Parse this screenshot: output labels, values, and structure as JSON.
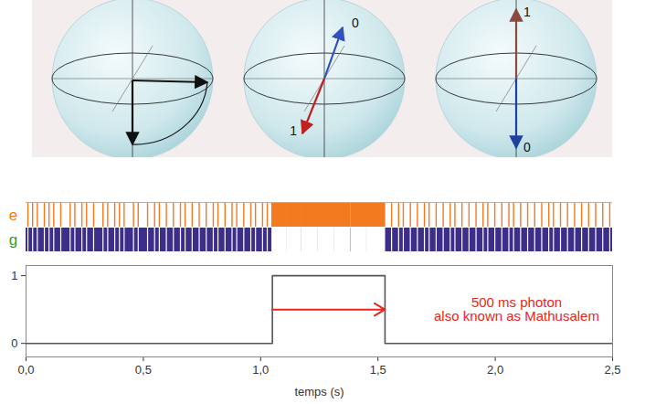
{
  "diagram": {
    "spheres": [
      {
        "labels": []
      },
      {
        "labels": [
          "0",
          "1"
        ]
      },
      {
        "labels": [
          "1",
          "0"
        ]
      }
    ]
  },
  "chart_data": [
    {
      "type": "raster",
      "xlim": [
        0,
        2.5
      ],
      "series": [
        {
          "name": "e",
          "color": "#f47a20",
          "intervals": [
            [
              0.01,
              0.01
            ],
            [
              0.03,
              0.03
            ],
            [
              0.05,
              0.05
            ],
            [
              0.08,
              0.08
            ],
            [
              0.1,
              0.1
            ],
            [
              0.12,
              0.12
            ],
            [
              0.15,
              0.15
            ],
            [
              0.19,
              0.19
            ],
            [
              0.21,
              0.21
            ],
            [
              0.24,
              0.24
            ],
            [
              0.26,
              0.26
            ],
            [
              0.29,
              0.29
            ],
            [
              0.33,
              0.33
            ],
            [
              0.35,
              0.35
            ],
            [
              0.38,
              0.38
            ],
            [
              0.4,
              0.4
            ],
            [
              0.42,
              0.42
            ],
            [
              0.46,
              0.46
            ],
            [
              0.48,
              0.48
            ],
            [
              0.52,
              0.52
            ],
            [
              0.55,
              0.55
            ],
            [
              0.57,
              0.57
            ],
            [
              0.6,
              0.6
            ],
            [
              0.63,
              0.63
            ],
            [
              0.66,
              0.66
            ],
            [
              0.68,
              0.68
            ],
            [
              0.71,
              0.71
            ],
            [
              0.74,
              0.74
            ],
            [
              0.77,
              0.77
            ],
            [
              0.8,
              0.8
            ],
            [
              0.82,
              0.82
            ],
            [
              0.85,
              0.85
            ],
            [
              0.88,
              0.88
            ],
            [
              0.9,
              0.9
            ],
            [
              0.93,
              0.93
            ],
            [
              0.96,
              0.96
            ],
            [
              0.98,
              0.98
            ],
            [
              1.01,
              1.01
            ],
            [
              1.03,
              1.03
            ],
            [
              1.05,
              1.11
            ],
            [
              1.113,
              1.17
            ],
            [
              1.175,
              1.24
            ],
            [
              1.245,
              1.31
            ],
            [
              1.315,
              1.38
            ],
            [
              1.386,
              1.45
            ],
            [
              1.455,
              1.53
            ],
            [
              1.56,
              1.56
            ],
            [
              1.59,
              1.59
            ],
            [
              1.61,
              1.61
            ],
            [
              1.64,
              1.64
            ],
            [
              1.67,
              1.67
            ],
            [
              1.7,
              1.7
            ],
            [
              1.72,
              1.72
            ],
            [
              1.75,
              1.75
            ],
            [
              1.78,
              1.78
            ],
            [
              1.81,
              1.81
            ],
            [
              1.83,
              1.83
            ],
            [
              1.86,
              1.86
            ],
            [
              1.89,
              1.89
            ],
            [
              1.92,
              1.92
            ],
            [
              1.95,
              1.95
            ],
            [
              1.97,
              1.97
            ],
            [
              2.0,
              2.0
            ],
            [
              2.03,
              2.03
            ],
            [
              2.06,
              2.06
            ],
            [
              2.08,
              2.08
            ],
            [
              2.11,
              2.11
            ],
            [
              2.14,
              2.14
            ],
            [
              2.17,
              2.17
            ],
            [
              2.2,
              2.2
            ],
            [
              2.23,
              2.23
            ],
            [
              2.25,
              2.25
            ],
            [
              2.28,
              2.28
            ],
            [
              2.31,
              2.31
            ],
            [
              2.34,
              2.34
            ],
            [
              2.37,
              2.37
            ],
            [
              2.4,
              2.4
            ],
            [
              2.43,
              2.43
            ],
            [
              2.46,
              2.46
            ],
            [
              2.49,
              2.49
            ]
          ]
        },
        {
          "name": "g",
          "color": "#3d2e8a"
        }
      ]
    },
    {
      "type": "line",
      "line_style": "step",
      "color": "#555555",
      "x": [
        0,
        1.05,
        1.53,
        2.5
      ],
      "values": [
        0,
        1,
        0,
        0
      ],
      "x_label": "temps (s)",
      "xlim": [
        0,
        2.5
      ],
      "xticks": [
        {
          "value": 0,
          "label": "0,0"
        },
        {
          "value": 0.5,
          "label": "0,5"
        },
        {
          "value": 1,
          "label": "1,0"
        },
        {
          "value": 1.5,
          "label": "1,5"
        },
        {
          "value": 2,
          "label": "2,0"
        },
        {
          "value": 2.5,
          "label": "2,5"
        }
      ],
      "ylim": [
        -0.2,
        1.15
      ],
      "yticks": [
        0,
        1
      ],
      "annotation": {
        "lines": [
          "500 ms photon",
          "also known as Mathusalem"
        ],
        "color": "#e8261c"
      }
    }
  ]
}
